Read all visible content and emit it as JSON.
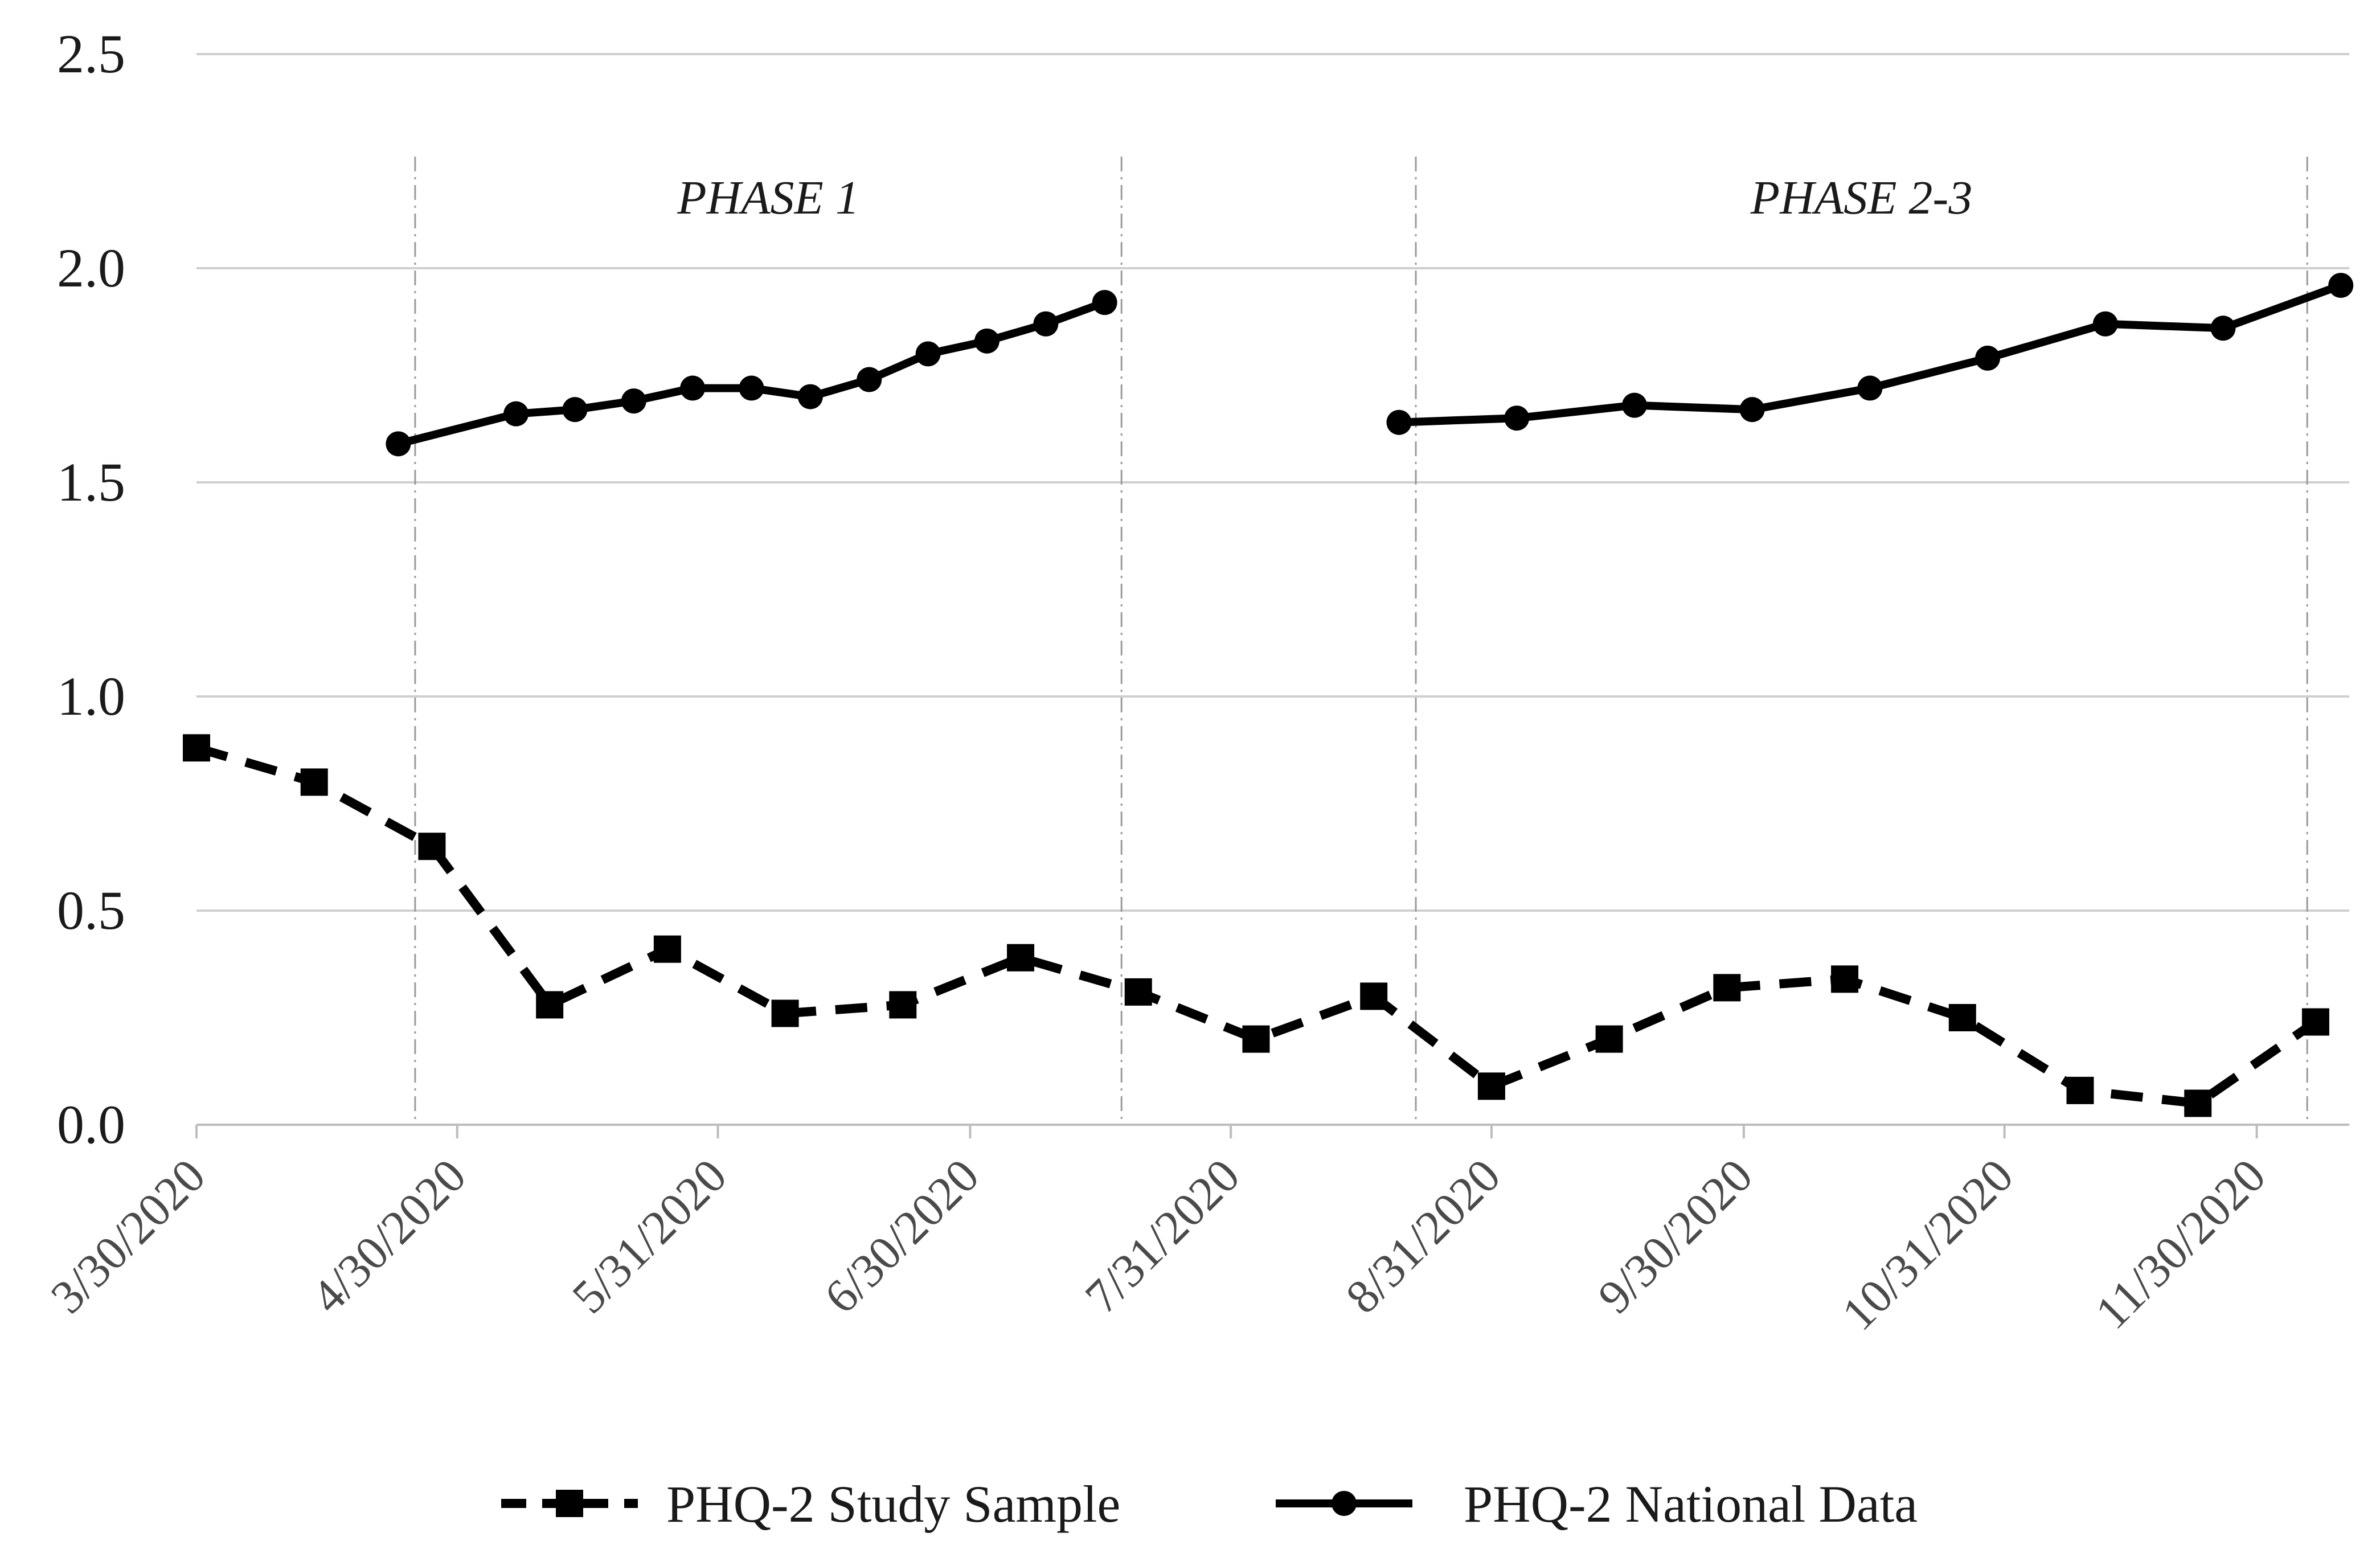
{
  "chart_data": {
    "type": "line",
    "title": "",
    "xlabel": "",
    "ylabel": "",
    "ylim": [
      0,
      2.5
    ],
    "y_ticks": [
      "0.0",
      "0.5",
      "1.0",
      "1.5",
      "2.0",
      "2.5"
    ],
    "x_start": "2020-03-30",
    "x_end": "2020-12-21",
    "x_tick_labels": [
      "3/30/2020",
      "4/30/2020",
      "5/31/2020",
      "6/30/2020",
      "7/31/2020",
      "8/31/2020",
      "9/30/2020",
      "10/31/2020",
      "11/30/2020"
    ],
    "x_tick_days": [
      0,
      31,
      62,
      92,
      123,
      154,
      184,
      215,
      245
    ],
    "phases": [
      {
        "label": "PHASE 1",
        "start_day": 26,
        "end_day": 110
      },
      {
        "label": "PHASE 2-3",
        "start_day": 145,
        "end_day": 251
      }
    ],
    "series": [
      {
        "name": "PHQ-2 Study Sample",
        "style": "dashed",
        "marker": "square",
        "segments": [
          [
            {
              "day": 0,
              "value": 0.88
            },
            {
              "day": 14,
              "value": 0.8
            },
            {
              "day": 28,
              "value": 0.65
            },
            {
              "day": 42,
              "value": 0.28
            },
            {
              "day": 56,
              "value": 0.41
            },
            {
              "day": 70,
              "value": 0.26
            },
            {
              "day": 84,
              "value": 0.28
            },
            {
              "day": 98,
              "value": 0.39
            },
            {
              "day": 112,
              "value": 0.31
            },
            {
              "day": 126,
              "value": 0.2
            },
            {
              "day": 140,
              "value": 0.3
            },
            {
              "day": 154,
              "value": 0.09
            },
            {
              "day": 168,
              "value": 0.2
            },
            {
              "day": 182,
              "value": 0.32
            },
            {
              "day": 196,
              "value": 0.34
            },
            {
              "day": 210,
              "value": 0.25
            },
            {
              "day": 224,
              "value": 0.08
            },
            {
              "day": 238,
              "value": 0.05
            },
            {
              "day": 252,
              "value": 0.24
            }
          ]
        ]
      },
      {
        "name": "PHQ-2 National Data",
        "style": "solid",
        "marker": "circle",
        "segments": [
          [
            {
              "day": 24,
              "value": 1.59
            },
            {
              "day": 38,
              "value": 1.66
            },
            {
              "day": 45,
              "value": 1.67
            },
            {
              "day": 52,
              "value": 1.69
            },
            {
              "day": 59,
              "value": 1.72
            },
            {
              "day": 66,
              "value": 1.72
            },
            {
              "day": 73,
              "value": 1.7
            },
            {
              "day": 80,
              "value": 1.74
            },
            {
              "day": 87,
              "value": 1.8
            },
            {
              "day": 94,
              "value": 1.83
            },
            {
              "day": 101,
              "value": 1.87
            },
            {
              "day": 108,
              "value": 1.92
            }
          ],
          [
            {
              "day": 143,
              "value": 1.64
            },
            {
              "day": 157,
              "value": 1.65
            },
            {
              "day": 171,
              "value": 1.68
            },
            {
              "day": 185,
              "value": 1.67
            },
            {
              "day": 199,
              "value": 1.72
            },
            {
              "day": 213,
              "value": 1.79
            },
            {
              "day": 227,
              "value": 1.87
            },
            {
              "day": 241,
              "value": 1.86
            },
            {
              "day": 255,
              "value": 1.96
            }
          ]
        ]
      }
    ],
    "legend": [
      {
        "label": "PHQ-2 Study Sample",
        "style": "dashed",
        "marker": "square"
      },
      {
        "label": "PHQ-2 National Data",
        "style": "solid",
        "marker": "circle"
      }
    ],
    "legend_position": "bottom",
    "grid": true
  }
}
